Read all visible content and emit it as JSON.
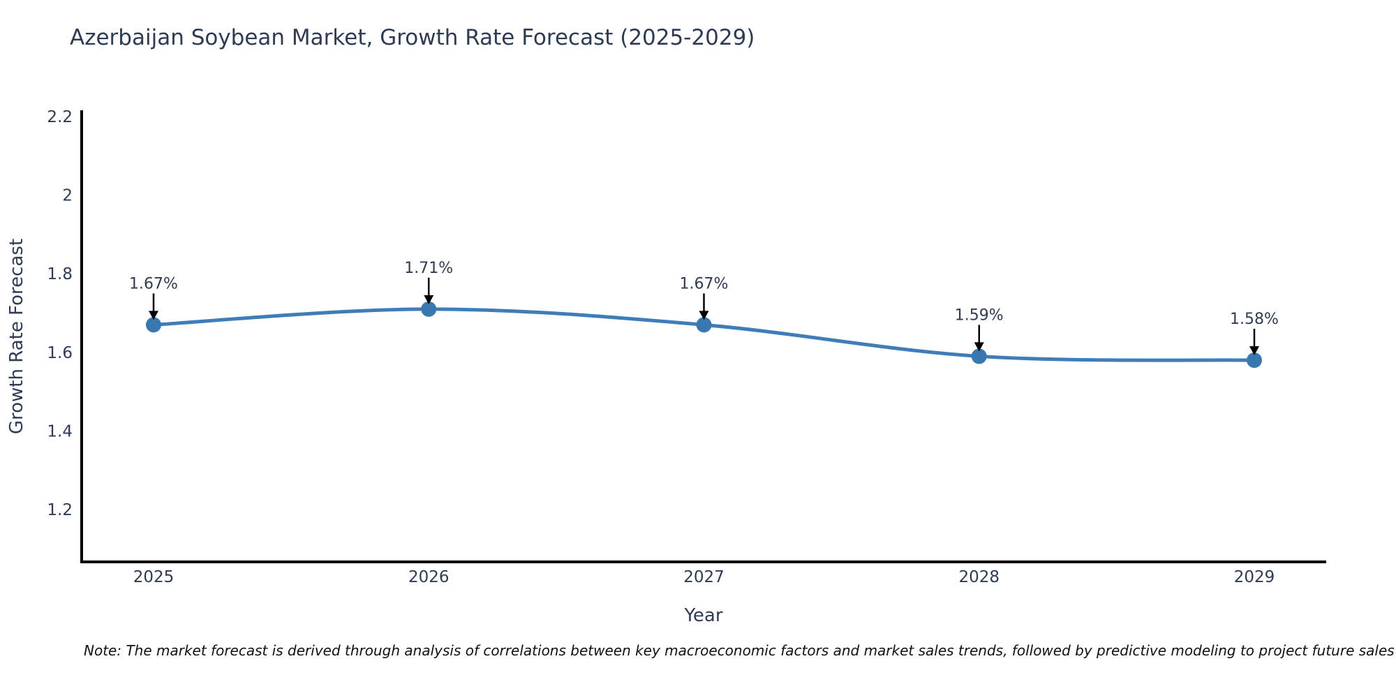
{
  "title": "Azerbaijan Soybean Market, Growth Rate Forecast (2025-2029)",
  "note": "Note: The market forecast is derived through analysis of correlations between key macroeconomic factors and market sales trends, followed by predictive modeling to project future sales",
  "chart_data": {
    "type": "line",
    "title": "Azerbaijan Soybean Market, Growth Rate Forecast (2025-2029)",
    "xlabel": "Year",
    "ylabel": "Growth Rate Forecast",
    "categories": [
      "2025",
      "2026",
      "2027",
      "2028",
      "2029"
    ],
    "x": [
      2025,
      2026,
      2027,
      2028,
      2029
    ],
    "values": [
      1.67,
      1.71,
      1.67,
      1.59,
      1.58
    ],
    "point_labels": [
      "1.67%",
      "1.71%",
      "1.67%",
      "1.59%",
      "1.58%"
    ],
    "yticks": [
      1.2,
      1.4,
      1.6,
      1.8,
      2,
      2.2
    ],
    "ytick_labels": [
      "1.2",
      "1.4",
      "1.6",
      "1.8",
      "2",
      "2.2"
    ],
    "ylim": [
      1.07,
      2.22
    ],
    "grid": false,
    "legend_position": "none",
    "line_shape": "spline",
    "colors": {
      "line": "#3f7db8",
      "marker": "#3a78b2",
      "arrow": "#000000",
      "axis": "#000000",
      "chart_text": "#2f3b52",
      "note_text": "#111111",
      "background": "#ffffff"
    }
  }
}
